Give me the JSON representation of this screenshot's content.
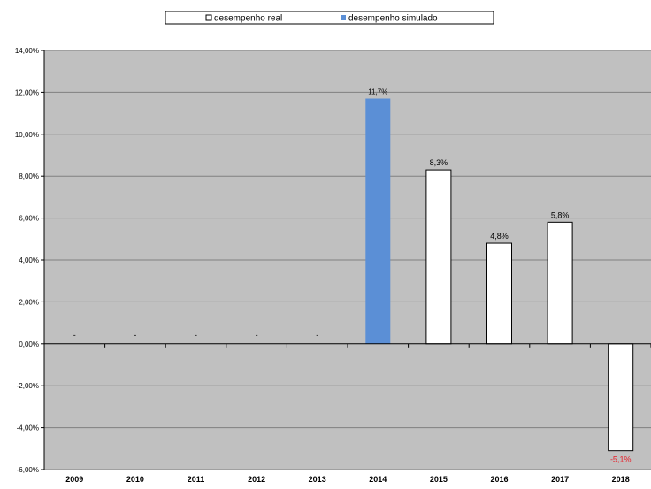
{
  "colors": {
    "plot_background": "#c0c0c0",
    "real_fill": "#ffffff",
    "simulated_fill": "#5b8fd6",
    "negative_label": "#e8202a",
    "label_default": "#000000",
    "gridline": "#808080",
    "axis": "#000000"
  },
  "legend": {
    "items": [
      {
        "label": "desempenho real",
        "swatch": "real"
      },
      {
        "label": "desempenho simulado",
        "swatch": "simulated"
      }
    ]
  },
  "chart_data": {
    "type": "bar",
    "title": "",
    "xlabel": "",
    "ylabel": "",
    "categories": [
      "2009",
      "2010",
      "2011",
      "2012",
      "2013",
      "2014",
      "2015",
      "2016",
      "2017",
      "2018"
    ],
    "series": [
      {
        "name": "desempenho real",
        "values": [
          null,
          null,
          null,
          null,
          null,
          null,
          8.3,
          4.8,
          5.8,
          -5.1
        ]
      },
      {
        "name": "desempenho simulado",
        "values": [
          null,
          null,
          null,
          null,
          null,
          11.7,
          null,
          null,
          null,
          null
        ]
      }
    ],
    "data_labels": [
      "-",
      "-",
      "-",
      "-",
      "-",
      "11,7%",
      "8,3%",
      "4,8%",
      "5,8%",
      "-5,1%"
    ],
    "ylim": [
      -6,
      14
    ],
    "y_ticks": [
      -6,
      -4,
      -2,
      0,
      2,
      4,
      6,
      8,
      10,
      12,
      14
    ],
    "y_tick_labels": [
      "-6,00%",
      "-4,00%",
      "-2,00%",
      "0,00%",
      "2,00%",
      "4,00%",
      "6,00%",
      "8,00%",
      "10,00%",
      "12,00%",
      "14,00%"
    ],
    "grid": true,
    "legend_position": "top"
  }
}
